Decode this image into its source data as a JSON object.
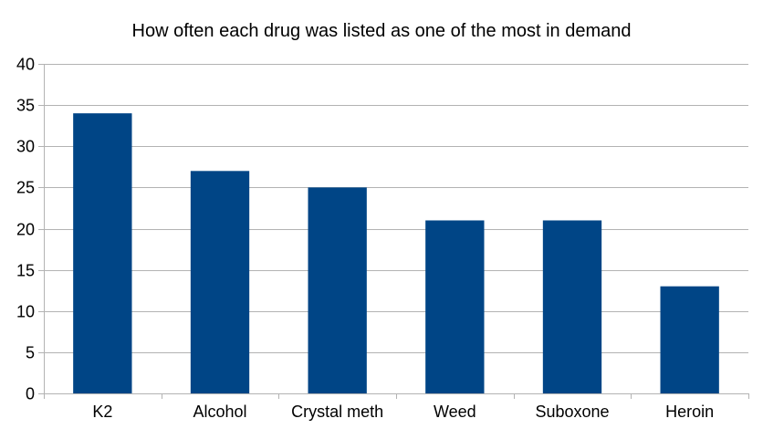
{
  "chart_data": {
    "type": "bar",
    "title": "How often each drug was listed as one of the most in demand",
    "xlabel": "",
    "ylabel": "",
    "categories": [
      "K2",
      "Alcohol",
      "Crystal meth",
      "Weed",
      "Suboxone",
      "Heroin"
    ],
    "series": [
      {
        "values": [
          34,
          27,
          25,
          21,
          21,
          13
        ],
        "color": "#004586"
      }
    ],
    "ylim": [
      0,
      40
    ],
    "yticks": [
      0,
      5,
      10,
      15,
      20,
      25,
      30,
      35,
      40
    ],
    "grid": true,
    "legend": "none"
  }
}
